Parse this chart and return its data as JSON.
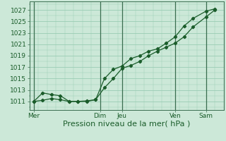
{
  "bg_color": "#cce8d8",
  "grid_color": "#99ccb3",
  "line_color": "#1a5c2a",
  "marker_color": "#1a5c2a",
  "xlabel": "Pression niveau de la mer( hPa )",
  "xlabel_fontsize": 8,
  "ytick_values": [
    1011,
    1013,
    1015,
    1017,
    1019,
    1021,
    1023,
    1025,
    1027
  ],
  "ylim": [
    1009.5,
    1028.5
  ],
  "xlim": [
    0,
    132
  ],
  "xtick_positions": [
    3,
    48,
    63,
    99,
    120
  ],
  "xtick_labels": [
    "Mer",
    "Dim",
    "Jeu",
    "Ven",
    "Sam"
  ],
  "vline_positions": [
    3,
    48,
    63,
    99,
    120
  ],
  "line1_x": [
    3,
    9,
    15,
    21,
    27,
    33,
    39,
    45,
    51,
    57,
    63,
    69,
    75,
    81,
    87,
    93,
    99,
    105,
    111,
    120,
    126
  ],
  "line1_y": [
    1011.0,
    1012.5,
    1012.2,
    1012.0,
    1011.0,
    1011.0,
    1011.1,
    1011.3,
    1013.4,
    1015.0,
    1016.8,
    1017.3,
    1018.0,
    1019.0,
    1019.8,
    1020.5,
    1021.2,
    1022.3,
    1024.0,
    1025.8,
    1027.0
  ],
  "line2_x": [
    3,
    9,
    15,
    21,
    27,
    33,
    39,
    45,
    51,
    57,
    63,
    69,
    75,
    81,
    87,
    93,
    99,
    105,
    111,
    120,
    126
  ],
  "line2_y": [
    1011.0,
    1011.2,
    1011.5,
    1011.3,
    1011.0,
    1011.0,
    1011.0,
    1011.3,
    1015.0,
    1016.6,
    1017.2,
    1018.5,
    1019.0,
    1019.8,
    1020.2,
    1021.2,
    1022.3,
    1024.2,
    1025.5,
    1026.8,
    1027.2
  ]
}
